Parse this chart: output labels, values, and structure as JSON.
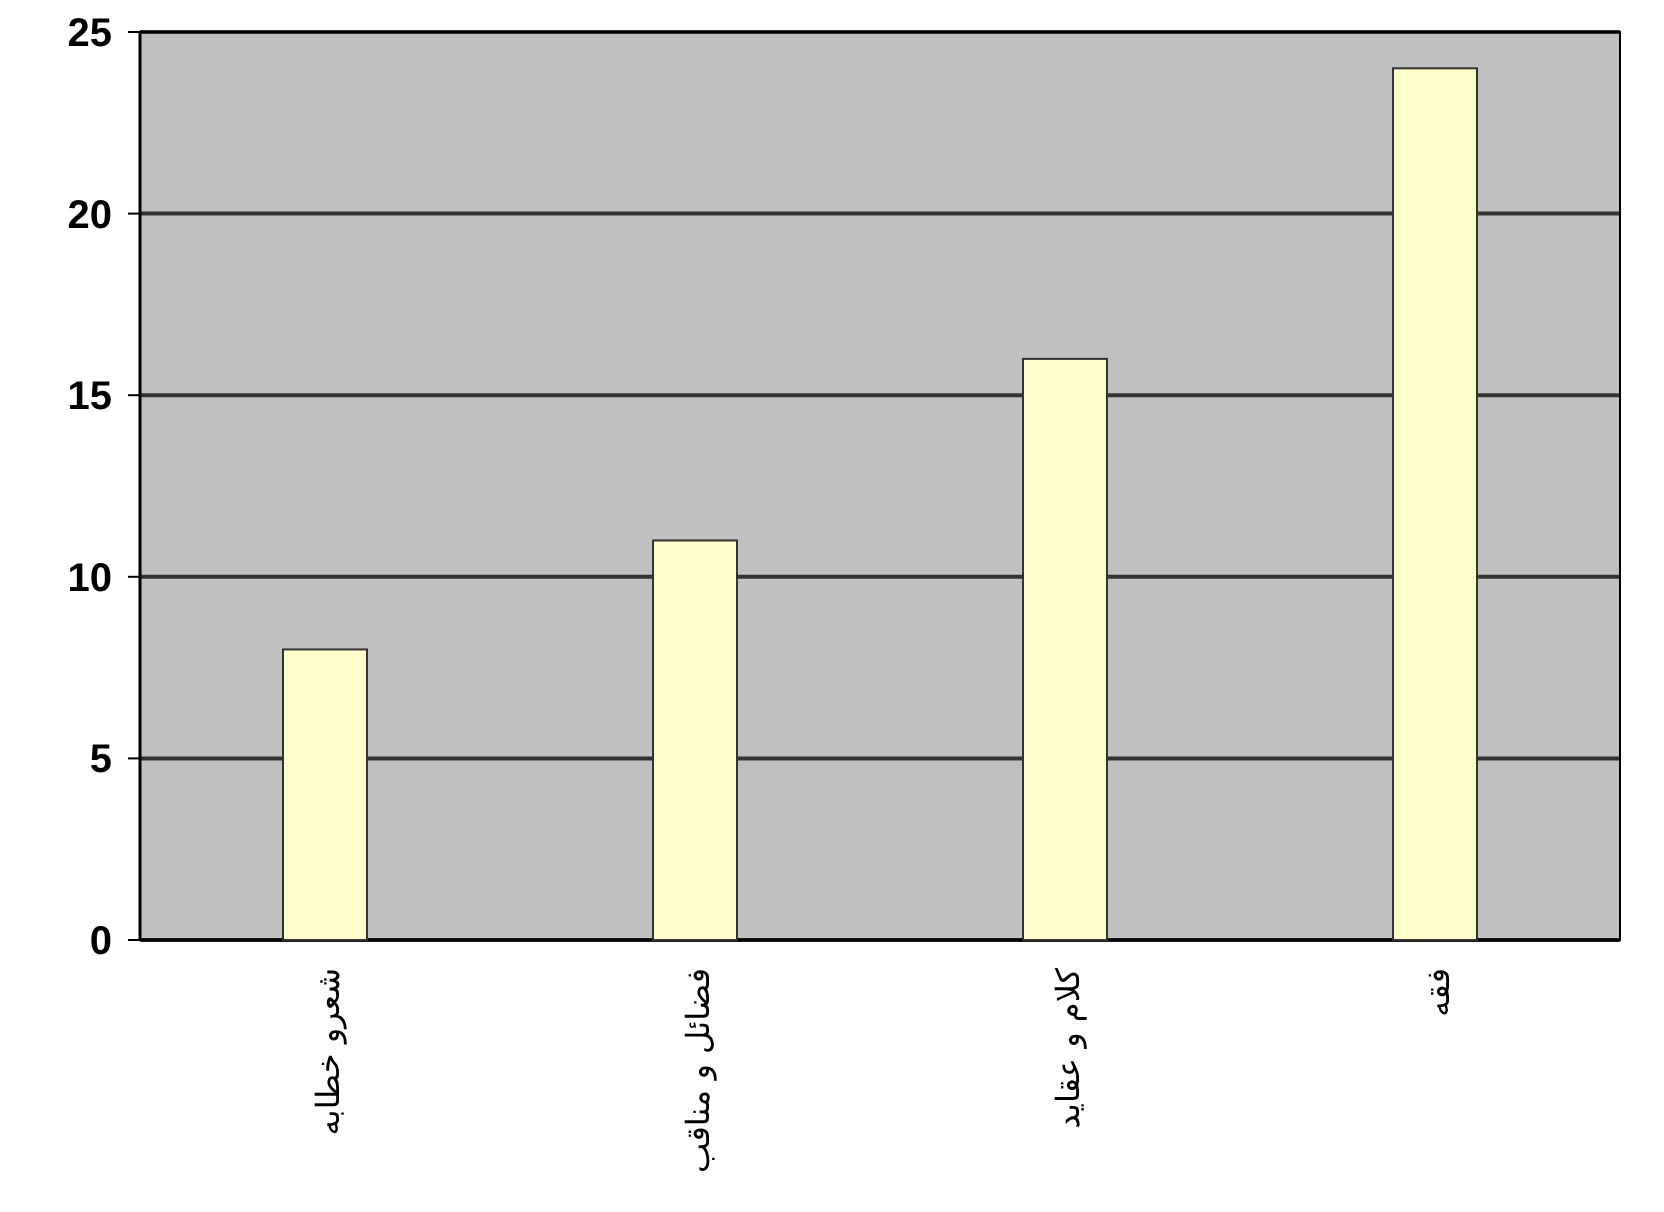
{
  "chart_data": {
    "type": "bar",
    "categories": [
      "شعرو خطابه",
      "فضائل و مناقب",
      "كلام و عقايد",
      "فقه"
    ],
    "values": [
      8,
      11,
      16,
      24
    ],
    "color": "#ffffcc",
    "ylim": [
      0,
      25
    ],
    "yticks": [
      0,
      5,
      10,
      15,
      20,
      25
    ],
    "grid": "y"
  }
}
